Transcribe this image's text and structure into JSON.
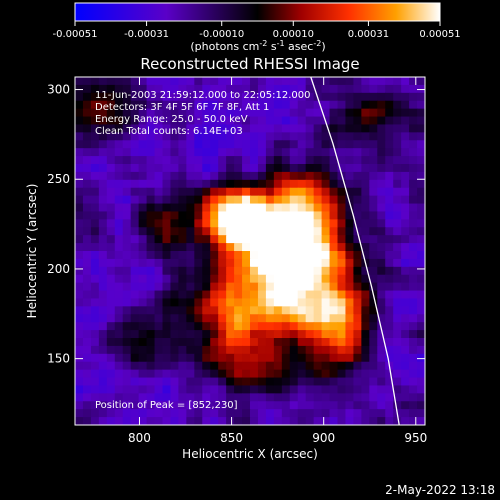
{
  "chart_data": {
    "type": "heatmap",
    "title": "Reconstructed RHESSI Image",
    "xlabel": "Heliocentric X (arcsec)",
    "ylabel": "Heliocentric Y (arcsec)",
    "xlim": [
      765,
      955
    ],
    "ylim": [
      113,
      307
    ],
    "x_ticks": [
      800,
      850,
      900,
      950
    ],
    "y_ticks": [
      150,
      200,
      250,
      300
    ],
    "colorbar": {
      "range": [
        -0.00051,
        0.00051
      ],
      "ticks": [
        "-0.00051",
        "-0.00031",
        "-0.00010",
        "0.00010",
        "0.00031",
        "0.00051"
      ],
      "unit_prefix": "(photons cm",
      "unit_exp1": "-2",
      "unit_mid": " s",
      "unit_exp2": "-1",
      "unit_mid2": " asec",
      "unit_exp3": "-2",
      "unit_suffix": ")"
    },
    "info_lines": [
      "11-Jun-2003 21:59:12.000 to 22:05:12.000",
      "Detectors: 3F 4F 5F 6F 7F 8F, Att 1",
      "Energy Range: 25.0 - 50.0 keV",
      "Clean     Total counts: 6.14E+03"
    ],
    "peak_label": "Position of Peak = [852,230]",
    "peak": [
      852,
      230
    ],
    "limb_curve": [
      [
        893,
        307
      ],
      [
        905,
        270
      ],
      [
        916,
        230
      ],
      [
        926,
        190
      ],
      [
        935,
        150
      ],
      [
        941,
        113
      ]
    ],
    "emission_blobs": [
      {
        "x": 852,
        "y": 230,
        "amp": 1.0,
        "sx": 13,
        "sy": 11
      },
      {
        "x": 872,
        "y": 215,
        "amp": 0.8,
        "sx": 18,
        "sy": 16
      },
      {
        "x": 895,
        "y": 205,
        "amp": 0.65,
        "sx": 16,
        "sy": 22
      },
      {
        "x": 875,
        "y": 180,
        "amp": 0.6,
        "sx": 22,
        "sy": 14
      },
      {
        "x": 910,
        "y": 165,
        "amp": 0.55,
        "sx": 12,
        "sy": 20
      },
      {
        "x": 845,
        "y": 175,
        "amp": 0.45,
        "sx": 18,
        "sy": 18
      },
      {
        "x": 890,
        "y": 240,
        "amp": 0.5,
        "sx": 14,
        "sy": 12
      },
      {
        "x": 860,
        "y": 145,
        "amp": 0.4,
        "sx": 14,
        "sy": 12
      },
      {
        "x": 780,
        "y": 290,
        "amp": 0.45,
        "sx": 12,
        "sy": 14
      },
      {
        "x": 815,
        "y": 225,
        "amp": 0.35,
        "sx": 12,
        "sy": 14
      },
      {
        "x": 930,
        "y": 285,
        "amp": 0.35,
        "sx": 14,
        "sy": 12
      },
      {
        "x": 800,
        "y": 160,
        "amp": 0.3,
        "sx": 10,
        "sy": 10
      }
    ]
  },
  "footer": {
    "date": "2-May-2022 13:18"
  }
}
